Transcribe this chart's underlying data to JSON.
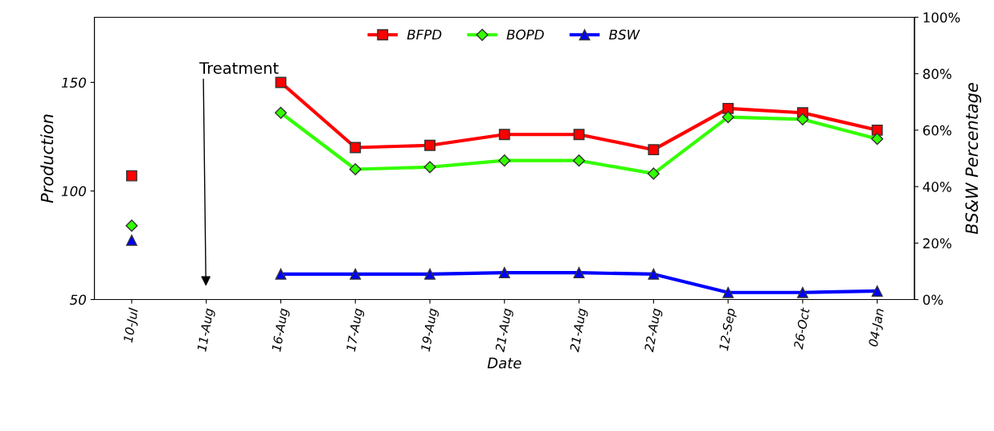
{
  "chart_data": {
    "type": "line",
    "xlabel": "Date",
    "ylabel": "Production",
    "y2label": "BS&W Percentage",
    "categories": [
      "10-Jul",
      "11-Aug",
      "16-Aug",
      "17-Aug",
      "19-Aug",
      "21-Aug",
      "21-Aug",
      "22-Aug",
      "12-Sep",
      "26-Oct",
      "04-Jan"
    ],
    "series": [
      {
        "name": "BFPD",
        "color": "#ff0000",
        "marker": "square",
        "values": [
          107,
          null,
          150,
          120,
          121,
          126,
          126,
          119,
          138,
          136,
          128
        ]
      },
      {
        "name": "BOPD",
        "color": "#33ff00",
        "marker": "diamond",
        "values": [
          84,
          null,
          136,
          110,
          111,
          114,
          114,
          108,
          134,
          133,
          124
        ]
      },
      {
        "name": "BSW",
        "color": "#0000ff",
        "marker": "triangle",
        "axis": "y2",
        "values": [
          21,
          null,
          9,
          9,
          9,
          9.5,
          9.5,
          9,
          2.5,
          2.5,
          3
        ]
      }
    ],
    "ylim": [
      50,
      180
    ],
    "yticks": [
      50,
      100,
      150
    ],
    "y2lim": [
      0,
      100
    ],
    "y2ticks": [
      {
        "value": 0,
        "label": "0%"
      },
      {
        "value": 20,
        "label": "20%"
      },
      {
        "value": 40,
        "label": "40%"
      },
      {
        "value": 60,
        "label": "60%"
      },
      {
        "value": 80,
        "label": "80%"
      },
      {
        "value": 100,
        "label": "100%"
      }
    ],
    "annotations": [
      "Treatment"
    ],
    "legend": "top",
    "grid": false,
    "line_style": "solid"
  }
}
